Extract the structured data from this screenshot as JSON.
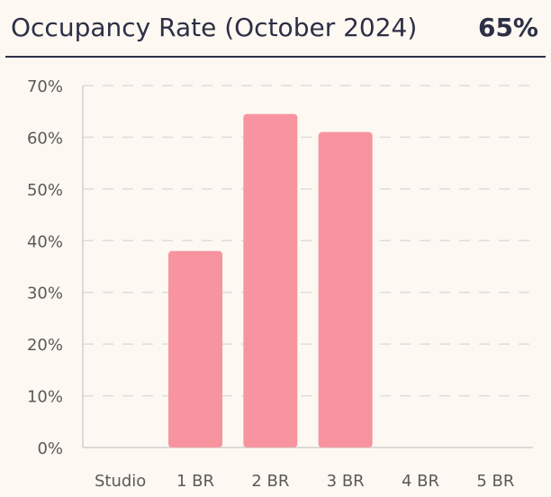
{
  "header": {
    "title": "Occupancy Rate (October 2024)",
    "kpi_value": "65%"
  },
  "colors": {
    "bar": "#f7949f",
    "grid": "#dddddd",
    "axis": "#d0d0d0",
    "text": "#2c2f45",
    "background": "#fdf8f1"
  },
  "chart_data": {
    "type": "bar",
    "title": "Occupancy Rate (October 2024)",
    "categories": [
      "Studio",
      "1 BR",
      "2 BR",
      "3 BR",
      "4 BR",
      "5 BR"
    ],
    "values": [
      0,
      38,
      64.5,
      61,
      0,
      0
    ],
    "ylim": [
      0,
      70
    ],
    "y_ticks": [
      0,
      10,
      20,
      30,
      40,
      50,
      60,
      70
    ],
    "y_tick_labels": [
      "0%",
      "10%",
      "20%",
      "30%",
      "40%",
      "50%",
      "60%",
      "70%"
    ],
    "grid": true,
    "legend": "none"
  }
}
